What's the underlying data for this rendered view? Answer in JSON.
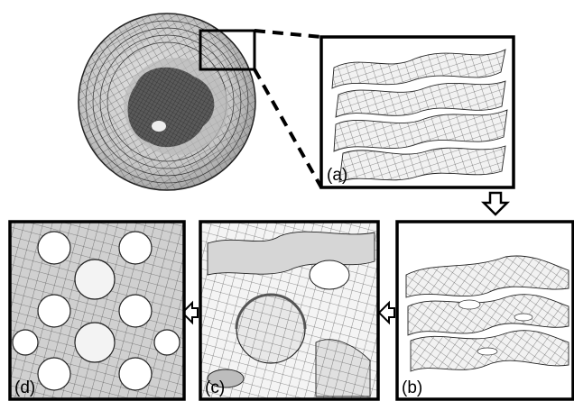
{
  "colors": {
    "frame": "#000000",
    "mesh_stroke": "#222222",
    "surface_fill": "#f2f2f2",
    "shade_fill": "#9a9a9a",
    "background": "#ffffff"
  },
  "panels": [
    {
      "id": "a",
      "label": "(a)",
      "content": "stacked-wavy-lamellae"
    },
    {
      "id": "b",
      "label": "(b)",
      "content": "perforated-lamellae"
    },
    {
      "id": "c",
      "label": "(c)",
      "content": "bicontinuous-network-closeup"
    },
    {
      "id": "d",
      "label": "(d)",
      "content": "periodic-minimal-surface"
    }
  ],
  "overview": {
    "content": "spherical-droplet-mesh",
    "inset_marker": "zoom-box"
  },
  "arrows": [
    {
      "from": "a",
      "to": "b",
      "icon": "arrow-down-icon"
    },
    {
      "from": "b",
      "to": "c",
      "icon": "arrow-left-icon"
    },
    {
      "from": "c",
      "to": "d",
      "icon": "arrow-left-icon"
    }
  ]
}
